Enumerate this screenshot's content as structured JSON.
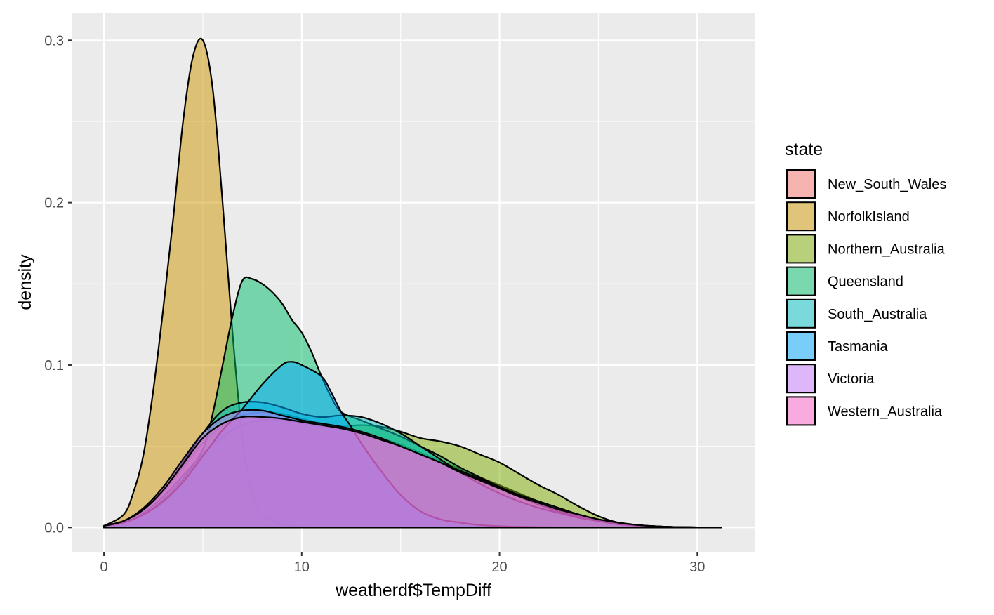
{
  "chart_data": {
    "type": "area",
    "subtype": "density",
    "title": "",
    "xlabel": "weatherdf$TempDiff",
    "ylabel": "density",
    "xlim": [
      -1.6,
      32.9
    ],
    "ylim": [
      -0.015,
      0.317
    ],
    "x_ticks": [
      0,
      10,
      20,
      30
    ],
    "x_tick_labels": [
      "0",
      "10",
      "20",
      "30"
    ],
    "y_ticks": [
      0.0,
      0.1,
      0.2,
      0.3
    ],
    "y_tick_labels": [
      "0.0",
      "0.1",
      "0.2",
      "0.3"
    ],
    "grid": true,
    "panel_background": "#EBEBEB",
    "grid_color": "#FFFFFF",
    "fill_alpha": 0.5,
    "outline_color": "#000000",
    "legend": {
      "title": "state",
      "position": "right"
    },
    "series": [
      {
        "name": "New_South_Wales",
        "color": "#F8766D",
        "x": [
          0,
          1,
          2,
          3,
          4,
          5,
          6,
          7,
          8,
          9,
          10,
          11,
          12,
          13,
          14,
          15,
          16,
          17,
          18,
          19,
          20,
          21,
          22,
          23,
          24,
          25,
          26,
          27,
          28,
          29,
          30,
          31.2
        ],
        "y": [
          0.001,
          0.004,
          0.011,
          0.022,
          0.037,
          0.052,
          0.063,
          0.069,
          0.071,
          0.07,
          0.067,
          0.064,
          0.061,
          0.058,
          0.055,
          0.051,
          0.046,
          0.041,
          0.036,
          0.031,
          0.026,
          0.021,
          0.016,
          0.012,
          0.008,
          0.005,
          0.003,
          0.0015,
          0.0007,
          0.0003,
          0.0001,
          0.0
        ]
      },
      {
        "name": "NorfolkIsland",
        "color": "#CD9600",
        "x": [
          0,
          1,
          1.5,
          2,
          2.5,
          3,
          3.5,
          4,
          4.5,
          5,
          5.5,
          6,
          6.5,
          7,
          7.5,
          8,
          9,
          10,
          11
        ],
        "y": [
          0.001,
          0.008,
          0.022,
          0.045,
          0.085,
          0.135,
          0.19,
          0.25,
          0.29,
          0.3,
          0.27,
          0.2,
          0.12,
          0.055,
          0.02,
          0.008,
          0.002,
          0.0005,
          0.0
        ]
      },
      {
        "name": "Northern_Australia",
        "color": "#7CAE00",
        "x": [
          0,
          1,
          2,
          3,
          4,
          5,
          6,
          7,
          8,
          9,
          10,
          11,
          12,
          13,
          14,
          15,
          16,
          17,
          18,
          19,
          20,
          21,
          22,
          23,
          24,
          25,
          26,
          27,
          28,
          29,
          30,
          31.2
        ],
        "y": [
          0.001,
          0.003,
          0.009,
          0.019,
          0.032,
          0.045,
          0.056,
          0.063,
          0.066,
          0.066,
          0.064,
          0.062,
          0.062,
          0.063,
          0.062,
          0.059,
          0.055,
          0.053,
          0.05,
          0.045,
          0.04,
          0.033,
          0.026,
          0.02,
          0.013,
          0.007,
          0.003,
          0.0015,
          0.0006,
          0.0002,
          0.0001,
          0.0
        ]
      },
      {
        "name": "Queensland",
        "color": "#00BE67",
        "x": [
          0,
          1,
          2,
          3,
          4,
          5,
          5.5,
          6,
          6.5,
          7,
          7.5,
          8,
          8.5,
          9,
          9.5,
          10,
          10.5,
          11,
          11.5,
          12,
          13,
          14,
          15,
          16,
          17,
          18,
          19,
          20,
          21,
          22,
          23,
          24,
          25,
          26,
          27,
          28,
          29,
          30,
          31.2
        ],
        "y": [
          0.001,
          0.003,
          0.008,
          0.017,
          0.03,
          0.048,
          0.07,
          0.1,
          0.13,
          0.152,
          0.153,
          0.15,
          0.145,
          0.138,
          0.128,
          0.12,
          0.108,
          0.093,
          0.08,
          0.071,
          0.066,
          0.061,
          0.056,
          0.05,
          0.044,
          0.037,
          0.031,
          0.025,
          0.019,
          0.014,
          0.01,
          0.007,
          0.004,
          0.002,
          0.001,
          0.0005,
          0.0002,
          0.0001,
          0.0
        ]
      },
      {
        "name": "South_Australia",
        "color": "#00BFC4",
        "x": [
          0,
          1,
          2,
          3,
          4,
          5,
          6,
          7,
          8,
          9,
          10,
          11,
          12,
          13,
          14,
          15,
          16,
          17,
          18,
          19,
          20,
          21,
          22,
          23,
          24,
          25,
          26,
          27,
          28,
          29,
          30,
          31.2
        ],
        "y": [
          0.001,
          0.004,
          0.011,
          0.023,
          0.04,
          0.058,
          0.072,
          0.077,
          0.077,
          0.074,
          0.07,
          0.068,
          0.069,
          0.068,
          0.064,
          0.058,
          0.05,
          0.042,
          0.034,
          0.027,
          0.021,
          0.016,
          0.012,
          0.009,
          0.006,
          0.004,
          0.002,
          0.0012,
          0.0006,
          0.0002,
          0.0001,
          0.0
        ]
      },
      {
        "name": "Tasmania",
        "color": "#00A9FF",
        "x": [
          0,
          1,
          2,
          3,
          4,
          5,
          5.5,
          6,
          7,
          8,
          9,
          9.5,
          10,
          11,
          11.5,
          12,
          12.5,
          13,
          14,
          15,
          16,
          17,
          18,
          19,
          20,
          21,
          22,
          23,
          24,
          25,
          26
        ],
        "y": [
          0.001,
          0.003,
          0.008,
          0.016,
          0.028,
          0.044,
          0.052,
          0.06,
          0.073,
          0.088,
          0.1,
          0.102,
          0.1,
          0.093,
          0.083,
          0.071,
          0.062,
          0.052,
          0.035,
          0.02,
          0.01,
          0.005,
          0.003,
          0.0015,
          0.0008,
          0.0004,
          0.0002,
          0.0001,
          0.0,
          0.0,
          0.0
        ]
      },
      {
        "name": "Victoria",
        "color": "#C77CFF",
        "x": [
          0,
          1,
          2,
          3,
          4,
          5,
          6,
          7,
          8,
          9,
          10,
          11,
          12,
          13,
          14,
          15,
          16,
          17,
          18,
          19,
          20,
          21,
          22,
          23,
          24,
          25,
          26,
          27,
          28,
          29,
          30,
          31.2
        ],
        "y": [
          0.001,
          0.004,
          0.012,
          0.025,
          0.042,
          0.058,
          0.068,
          0.072,
          0.072,
          0.069,
          0.066,
          0.064,
          0.062,
          0.059,
          0.055,
          0.05,
          0.045,
          0.04,
          0.035,
          0.03,
          0.025,
          0.02,
          0.016,
          0.012,
          0.008,
          0.005,
          0.003,
          0.0015,
          0.0007,
          0.0003,
          0.0001,
          0.0
        ]
      },
      {
        "name": "Western_Australia",
        "color": "#FF61CC",
        "x": [
          0,
          1,
          2,
          3,
          4,
          5,
          6,
          7,
          8,
          9,
          10,
          11,
          12,
          13,
          14,
          15,
          16,
          17,
          18,
          19,
          20,
          21,
          22,
          23,
          24,
          25,
          26,
          27,
          28,
          29,
          30,
          31.2
        ],
        "y": [
          0.001,
          0.004,
          0.011,
          0.023,
          0.039,
          0.055,
          0.064,
          0.068,
          0.068,
          0.067,
          0.065,
          0.063,
          0.061,
          0.058,
          0.054,
          0.05,
          0.045,
          0.04,
          0.034,
          0.029,
          0.024,
          0.019,
          0.015,
          0.011,
          0.008,
          0.005,
          0.003,
          0.0015,
          0.0007,
          0.0003,
          0.0001,
          0.0
        ]
      }
    ]
  }
}
